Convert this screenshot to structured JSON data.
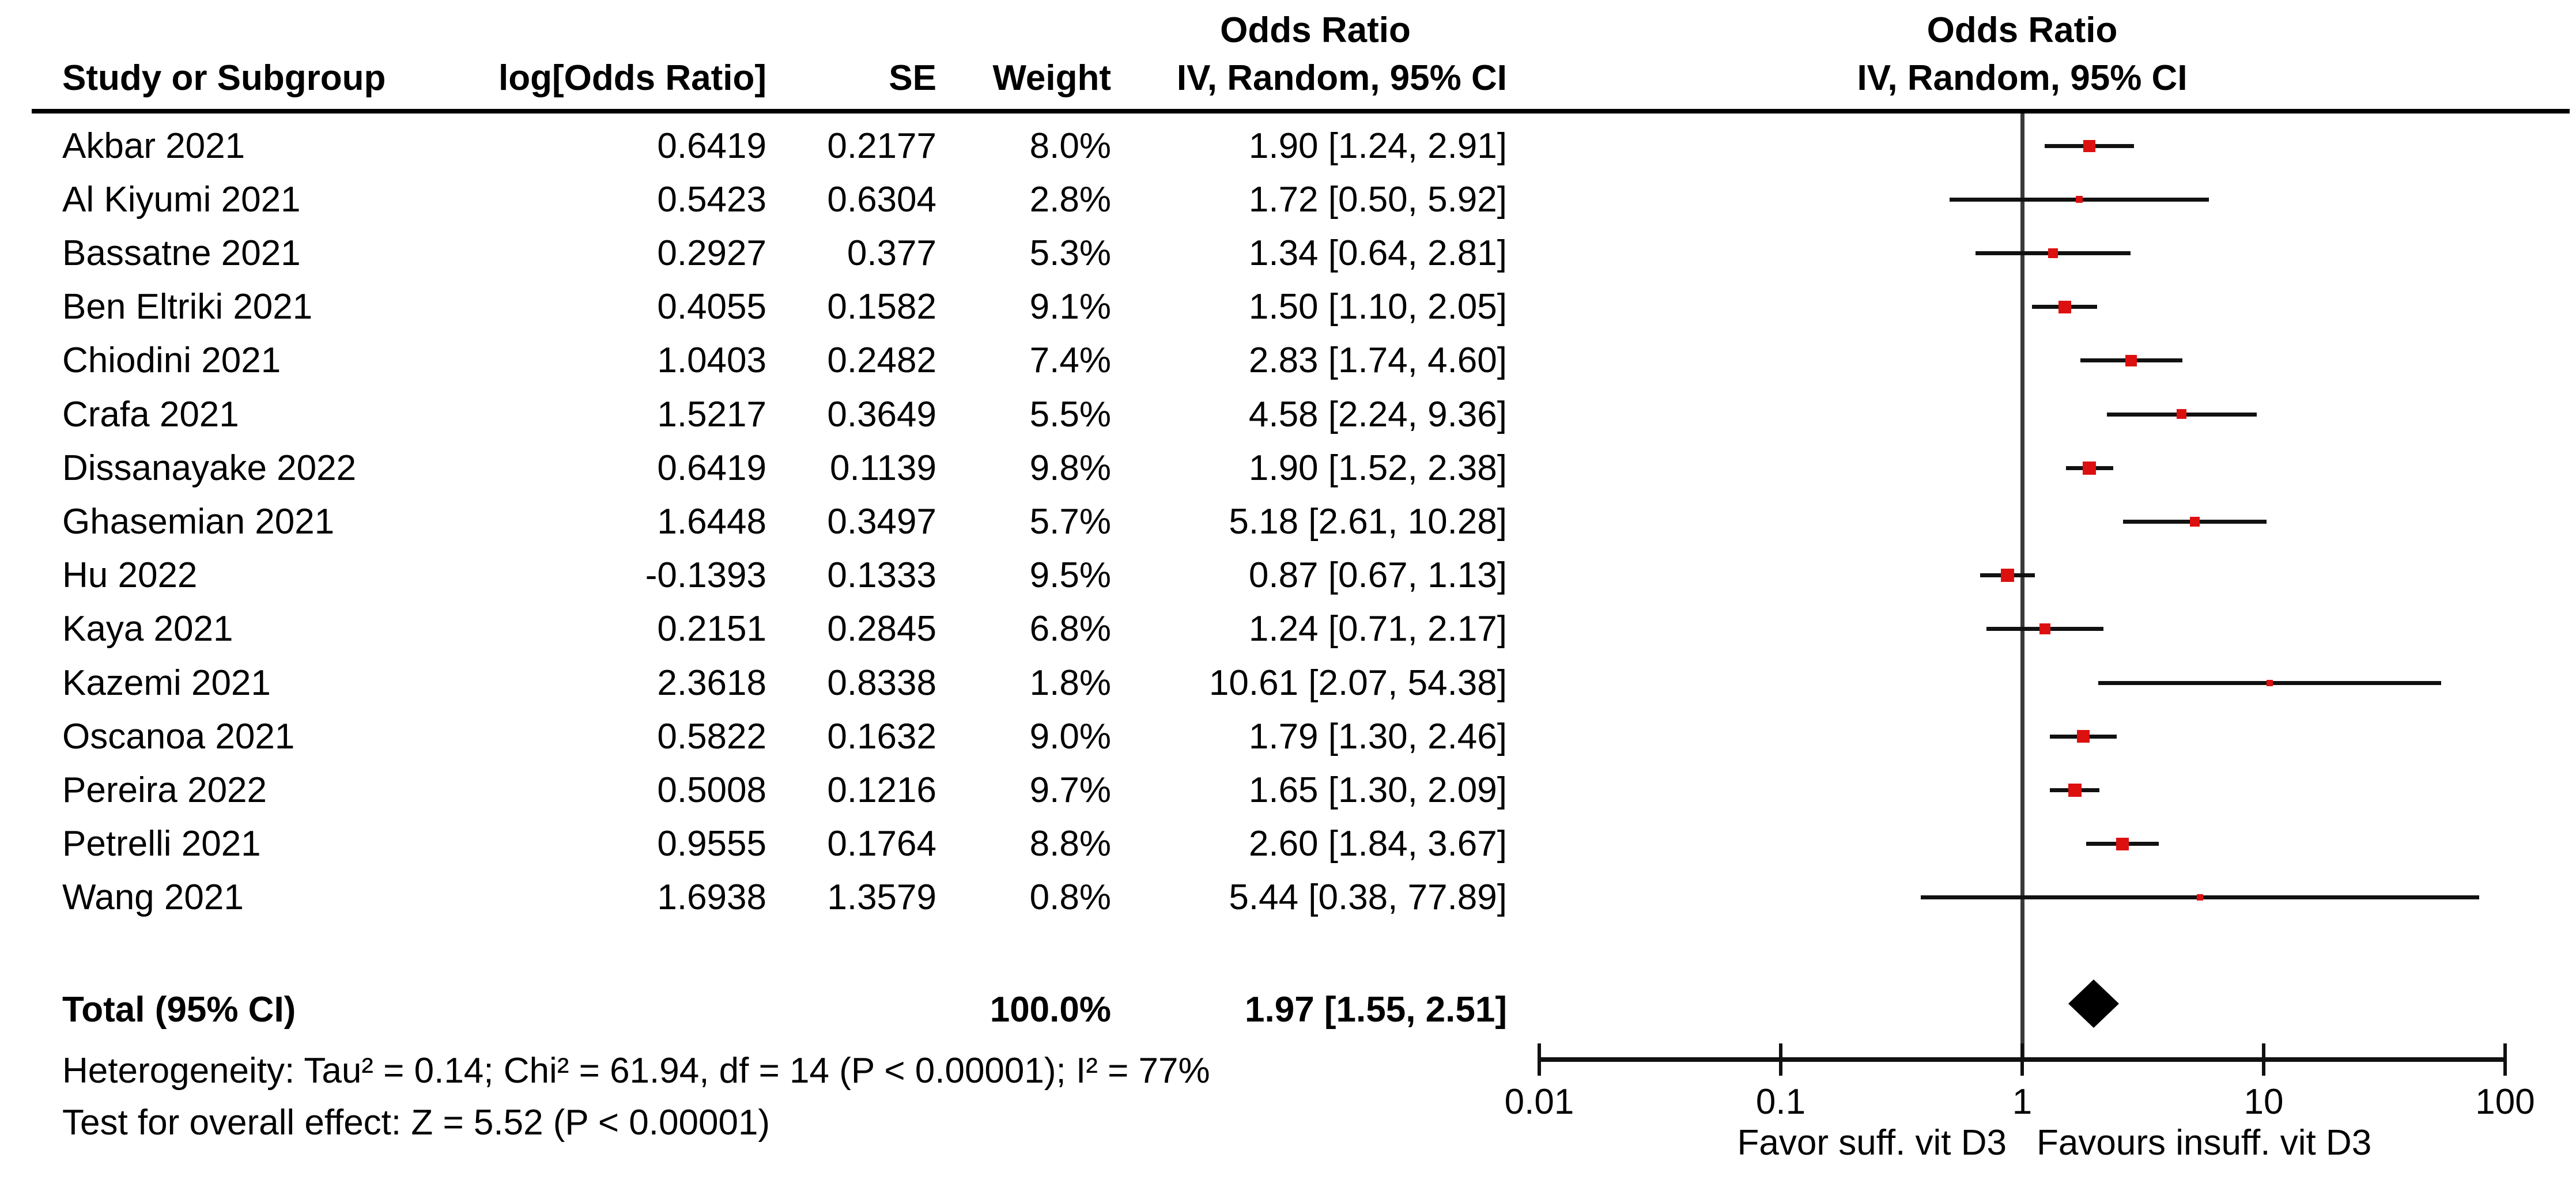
{
  "header": {
    "study_col": "Study or Subgroup",
    "log_or_col": "log[Odds Ratio]",
    "se_col": "SE",
    "weight_col": "Weight",
    "left_effect_title": "Odds Ratio",
    "left_effect_subtitle": "IV, Random, 95% CI",
    "right_effect_title": "Odds Ratio",
    "right_effect_subtitle": "IV, Random, 95% CI"
  },
  "chart_data": {
    "type": "scatter",
    "variant": "forest_plot",
    "effect_measure": "Odds Ratio",
    "model": "IV, Random, 95% CI",
    "x_scale": "log10",
    "x_min": 0.01,
    "x_max": 100,
    "null_line_value": 1,
    "x_ticks": [
      0.01,
      0.1,
      1,
      10,
      100
    ],
    "x_tick_labels": [
      "0.01",
      "0.1",
      "1",
      "10",
      "100"
    ],
    "studies": [
      {
        "name": "Akbar 2021",
        "log_or": "0.6419",
        "se": "0.2177",
        "weight": "8.0%",
        "weight_pct": 8.0,
        "or": 1.9,
        "ci_low": 1.24,
        "ci_high": 2.91,
        "or_ci": "1.90 [1.24, 2.91]"
      },
      {
        "name": "Al Kiyumi 2021",
        "log_or": "0.5423",
        "se": "0.6304",
        "weight": "2.8%",
        "weight_pct": 2.8,
        "or": 1.72,
        "ci_low": 0.5,
        "ci_high": 5.92,
        "or_ci": "1.72 [0.50, 5.92]"
      },
      {
        "name": "Bassatne 2021",
        "log_or": "0.2927",
        "se": "0.377",
        "weight": "5.3%",
        "weight_pct": 5.3,
        "or": 1.34,
        "ci_low": 0.64,
        "ci_high": 2.81,
        "or_ci": "1.34 [0.64, 2.81]"
      },
      {
        "name": "Ben Eltriki 2021",
        "log_or": "0.4055",
        "se": "0.1582",
        "weight": "9.1%",
        "weight_pct": 9.1,
        "or": 1.5,
        "ci_low": 1.1,
        "ci_high": 2.05,
        "or_ci": "1.50 [1.10, 2.05]"
      },
      {
        "name": "Chiodini 2021",
        "log_or": "1.0403",
        "se": "0.2482",
        "weight": "7.4%",
        "weight_pct": 7.4,
        "or": 2.83,
        "ci_low": 1.74,
        "ci_high": 4.6,
        "or_ci": "2.83 [1.74, 4.60]"
      },
      {
        "name": "Crafa 2021",
        "log_or": "1.5217",
        "se": "0.3649",
        "weight": "5.5%",
        "weight_pct": 5.5,
        "or": 4.58,
        "ci_low": 2.24,
        "ci_high": 9.36,
        "or_ci": "4.58 [2.24, 9.36]"
      },
      {
        "name": "Dissanayake 2022",
        "log_or": "0.6419",
        "se": "0.1139",
        "weight": "9.8%",
        "weight_pct": 9.8,
        "or": 1.9,
        "ci_low": 1.52,
        "ci_high": 2.38,
        "or_ci": "1.90 [1.52, 2.38]"
      },
      {
        "name": "Ghasemian 2021",
        "log_or": "1.6448",
        "se": "0.3497",
        "weight": "5.7%",
        "weight_pct": 5.7,
        "or": 5.18,
        "ci_low": 2.61,
        "ci_high": 10.28,
        "or_ci": "5.18 [2.61, 10.28]"
      },
      {
        "name": "Hu 2022",
        "log_or": "-0.1393",
        "se": "0.1333",
        "weight": "9.5%",
        "weight_pct": 9.5,
        "or": 0.87,
        "ci_low": 0.67,
        "ci_high": 1.13,
        "or_ci": "0.87 [0.67, 1.13]"
      },
      {
        "name": "Kaya 2021",
        "log_or": "0.2151",
        "se": "0.2845",
        "weight": "6.8%",
        "weight_pct": 6.8,
        "or": 1.24,
        "ci_low": 0.71,
        "ci_high": 2.17,
        "or_ci": "1.24 [0.71, 2.17]"
      },
      {
        "name": "Kazemi 2021",
        "log_or": "2.3618",
        "se": "0.8338",
        "weight": "1.8%",
        "weight_pct": 1.8,
        "or": 10.61,
        "ci_low": 2.07,
        "ci_high": 54.38,
        "or_ci": "10.61 [2.07, 54.38]"
      },
      {
        "name": "Oscanoa 2021",
        "log_or": "0.5822",
        "se": "0.1632",
        "weight": "9.0%",
        "weight_pct": 9.0,
        "or": 1.79,
        "ci_low": 1.3,
        "ci_high": 2.46,
        "or_ci": "1.79 [1.30, 2.46]"
      },
      {
        "name": "Pereira 2022",
        "log_or": "0.5008",
        "se": "0.1216",
        "weight": "9.7%",
        "weight_pct": 9.7,
        "or": 1.65,
        "ci_low": 1.3,
        "ci_high": 2.09,
        "or_ci": "1.65 [1.30, 2.09]"
      },
      {
        "name": "Petrelli 2021",
        "log_or": "0.9555",
        "se": "0.1764",
        "weight": "8.8%",
        "weight_pct": 8.8,
        "or": 2.6,
        "ci_low": 1.84,
        "ci_high": 3.67,
        "or_ci": "2.60 [1.84, 3.67]"
      },
      {
        "name": "Wang 2021",
        "log_or": "1.6938",
        "se": "1.3579",
        "weight": "0.8%",
        "weight_pct": 0.8,
        "or": 5.44,
        "ci_low": 0.38,
        "ci_high": 77.89,
        "or_ci": "5.44 [0.38, 77.89]"
      }
    ],
    "total": {
      "label": "Total (95% CI)",
      "weight": "100.0%",
      "weight_pct": 100.0,
      "or": 1.97,
      "ci_low": 1.55,
      "ci_high": 2.51,
      "or_ci": "1.97 [1.55, 2.51]"
    },
    "heterogeneity": "Heterogeneity: Tau² = 0.14; Chi² = 61.94, df = 14 (P < 0.00001); I² = 77%",
    "overall_effect_test": "Test for overall effect: Z = 5.52 (P < 0.00001)",
    "direction_labels": {
      "left": "Favor suff. vit D3",
      "right": "Favours insuff. vit D3"
    }
  },
  "colors": {
    "marker": "#dd1010",
    "ci_line": "#111111",
    "diamond": "#000000",
    "null_line": "#3a3a3a",
    "axis_line": "#111111",
    "header_rule": "#000000",
    "text": "#000000"
  }
}
